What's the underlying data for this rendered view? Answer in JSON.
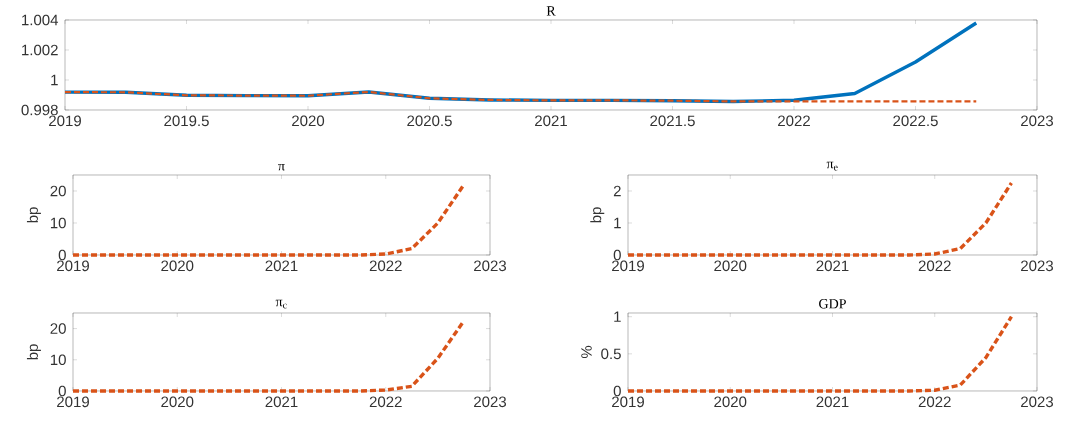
{
  "chart_data": [
    {
      "type": "line",
      "title": "R",
      "x": [
        2019,
        2019.25,
        2019.5,
        2019.75,
        2020,
        2020.25,
        2020.5,
        2020.75,
        2021,
        2021.25,
        2021.5,
        2021.75,
        2022,
        2022.25,
        2022.5,
        2022.75
      ],
      "xlim": [
        2019,
        2023
      ],
      "xticks": [
        2019,
        2019.5,
        2020,
        2020.5,
        2021,
        2021.5,
        2022,
        2022.5,
        2023
      ],
      "ylim": [
        0.998,
        1.004
      ],
      "yticks": [
        0.998,
        1,
        1.002,
        1.004
      ],
      "grid": false,
      "series": [
        {
          "color": "#0072bd",
          "line_style": "solid",
          "values": [
            0.99919,
            0.99918,
            0.99898,
            0.99896,
            0.99895,
            0.9992,
            0.99878,
            0.99867,
            0.99864,
            0.99864,
            0.99862,
            0.99857,
            0.99865,
            0.9991,
            1.0012,
            1.0038
          ]
        },
        {
          "color": "#d95319",
          "line_style": "dashed",
          "values": [
            0.99919,
            0.99918,
            0.99898,
            0.99896,
            0.99895,
            0.9992,
            0.99878,
            0.99867,
            0.99864,
            0.99864,
            0.99862,
            0.99857,
            0.99857,
            0.99857,
            0.99857,
            0.99857
          ]
        }
      ]
    },
    {
      "type": "line",
      "title": "π",
      "ylabel": "bp",
      "x": [
        2019,
        2019.25,
        2019.5,
        2019.75,
        2020,
        2020.25,
        2020.5,
        2020.75,
        2021,
        2021.25,
        2021.5,
        2021.75,
        2022,
        2022.25,
        2022.5,
        2022.75
      ],
      "xlim": [
        2019,
        2023
      ],
      "xticks": [
        2019,
        2020,
        2021,
        2022,
        2023
      ],
      "ylim": [
        0,
        25
      ],
      "yticks": [
        0,
        10,
        20
      ],
      "grid": false,
      "series": [
        {
          "color": "#d95319",
          "line_style": "dashed",
          "values": [
            0,
            0,
            0,
            0,
            0,
            0,
            0,
            0,
            0,
            0,
            0,
            0,
            0.3,
            2,
            10,
            22
          ]
        }
      ]
    },
    {
      "type": "line",
      "title": "π$_{e}$",
      "ylabel": "bp",
      "x": [
        2019,
        2019.25,
        2019.5,
        2019.75,
        2020,
        2020.25,
        2020.5,
        2020.75,
        2021,
        2021.25,
        2021.5,
        2021.75,
        2022,
        2022.25,
        2022.5,
        2022.75
      ],
      "xlim": [
        2019,
        2023
      ],
      "xticks": [
        2019,
        2020,
        2021,
        2022,
        2023
      ],
      "ylim": [
        0,
        2.5
      ],
      "yticks": [
        0,
        1,
        2
      ],
      "grid": false,
      "series": [
        {
          "color": "#d95319",
          "line_style": "dashed",
          "values": [
            0,
            0,
            0,
            0,
            0,
            0,
            0,
            0,
            0,
            0,
            0,
            0,
            0.03,
            0.2,
            1.0,
            2.25
          ]
        }
      ]
    },
    {
      "type": "line",
      "title": "π$_{c}$",
      "ylabel": "bp",
      "x": [
        2019,
        2019.25,
        2019.5,
        2019.75,
        2020,
        2020.25,
        2020.5,
        2020.75,
        2021,
        2021.25,
        2021.5,
        2021.75,
        2022,
        2022.25,
        2022.5,
        2022.75
      ],
      "xlim": [
        2019,
        2023
      ],
      "xticks": [
        2019,
        2020,
        2021,
        2022,
        2023
      ],
      "ylim": [
        0,
        25
      ],
      "yticks": [
        0,
        10,
        20
      ],
      "grid": false,
      "series": [
        {
          "color": "#d95319",
          "line_style": "dashed",
          "values": [
            0,
            0,
            0,
            0,
            0,
            0,
            0,
            0,
            0,
            0,
            0,
            0,
            0.3,
            1.5,
            10.5,
            22.5
          ]
        }
      ]
    },
    {
      "type": "line",
      "title": "GDP",
      "ylabel": "%",
      "x": [
        2019,
        2019.25,
        2019.5,
        2019.75,
        2020,
        2020.25,
        2020.5,
        2020.75,
        2021,
        2021.25,
        2021.5,
        2021.75,
        2022,
        2022.25,
        2022.5,
        2022.75
      ],
      "xlim": [
        2019,
        2023
      ],
      "xticks": [
        2019,
        2020,
        2021,
        2022,
        2023
      ],
      "ylim": [
        0,
        1.05
      ],
      "yticks": [
        0,
        0.5,
        1
      ],
      "grid": false,
      "series": [
        {
          "color": "#d95319",
          "line_style": "dashed",
          "values": [
            0,
            0,
            0,
            0,
            0,
            0,
            0,
            0,
            0,
            0,
            0,
            0,
            0.01,
            0.08,
            0.45,
            1.0
          ]
        }
      ]
    }
  ]
}
